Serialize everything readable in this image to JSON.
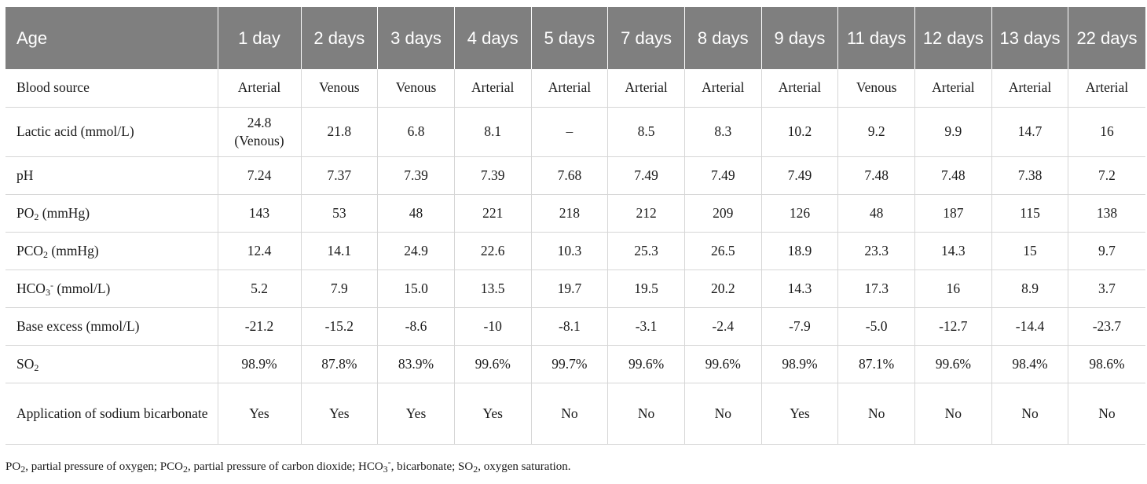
{
  "table": {
    "header": [
      "Age",
      "1 day",
      "2 days",
      "3 days",
      "4 days",
      "5 days",
      "7 days",
      "8 days",
      "9 days",
      "11 days",
      "12 days",
      "13 days",
      "22 days"
    ],
    "rows": [
      {
        "label": {
          "main": "Blood source",
          "sub": "",
          "sup": "",
          "tail": ""
        },
        "values": [
          "Arterial",
          "Venous",
          "Venous",
          "Arterial",
          "Arterial",
          "Arterial",
          "Arterial",
          "Arterial",
          "Venous",
          "Arterial",
          "Arterial",
          "Arterial"
        ]
      },
      {
        "label": {
          "main": "Lactic acid (mmol/L)",
          "sub": "",
          "sup": "",
          "tail": ""
        },
        "values": [
          "24.8 (Venous)",
          "21.8",
          "6.8",
          "8.1",
          "–",
          "8.5",
          "8.3",
          "10.2",
          "9.2",
          "9.9",
          "14.7",
          "16"
        ]
      },
      {
        "label": {
          "main": "pH",
          "sub": "",
          "sup": "",
          "tail": ""
        },
        "values": [
          "7.24",
          "7.37",
          "7.39",
          "7.39",
          "7.68",
          "7.49",
          "7.49",
          "7.49",
          "7.48",
          "7.48",
          "7.38",
          "7.2"
        ]
      },
      {
        "label": {
          "main": "PO",
          "sub": "2",
          "sup": "",
          "tail": " (mmHg)"
        },
        "values": [
          "143",
          "53",
          "48",
          "221",
          "218",
          "212",
          "209",
          "126",
          "48",
          "187",
          "115",
          "138"
        ]
      },
      {
        "label": {
          "main": "PCO",
          "sub": "2",
          "sup": "",
          "tail": " (mmHg)"
        },
        "values": [
          "12.4",
          "14.1",
          "24.9",
          "22.6",
          "10.3",
          "25.3",
          "26.5",
          "18.9",
          "23.3",
          "14.3",
          "15",
          "9.7"
        ]
      },
      {
        "label": {
          "main": "HCO",
          "sub": "3",
          "sup": "-",
          "tail": " (mmol/L)"
        },
        "values": [
          "5.2",
          "7.9",
          "15.0",
          "13.5",
          "19.7",
          "19.5",
          "20.2",
          "14.3",
          "17.3",
          "16",
          "8.9",
          "3.7"
        ]
      },
      {
        "label": {
          "main": "Base excess (mmol/L)",
          "sub": "",
          "sup": "",
          "tail": ""
        },
        "values": [
          "-21.2",
          "-15.2",
          "-8.6",
          "-10",
          "-8.1",
          "-3.1",
          "-2.4",
          "-7.9",
          "-5.0",
          "-12.7",
          "-14.4",
          "-23.7"
        ]
      },
      {
        "label": {
          "main": "SO",
          "sub": "2",
          "sup": "",
          "tail": ""
        },
        "values": [
          "98.9%",
          "87.8%",
          "83.9%",
          "99.6%",
          "99.7%",
          "99.6%",
          "99.6%",
          "98.9%",
          "87.1%",
          "99.6%",
          "98.4%",
          "98.6%"
        ]
      },
      {
        "label": {
          "main": "Application of sodium bicarbonate",
          "sub": "",
          "sup": "",
          "tail": ""
        },
        "values": [
          "Yes",
          "Yes",
          "Yes",
          "Yes",
          "No",
          "No",
          "No",
          "Yes",
          "No",
          "No",
          "No",
          "No"
        ]
      }
    ]
  },
  "footnote": [
    {
      "t": "PO"
    },
    {
      "sub": "2"
    },
    {
      "t": ", partial pressure of oxygen; PCO"
    },
    {
      "sub": "2"
    },
    {
      "t": ", partial pressure of carbon dioxide; HCO"
    },
    {
      "sub": "3"
    },
    {
      "sup": "-"
    },
    {
      "t": ", bicarbonate; SO"
    },
    {
      "sub": "2"
    },
    {
      "t": ", oxygen saturation."
    }
  ]
}
